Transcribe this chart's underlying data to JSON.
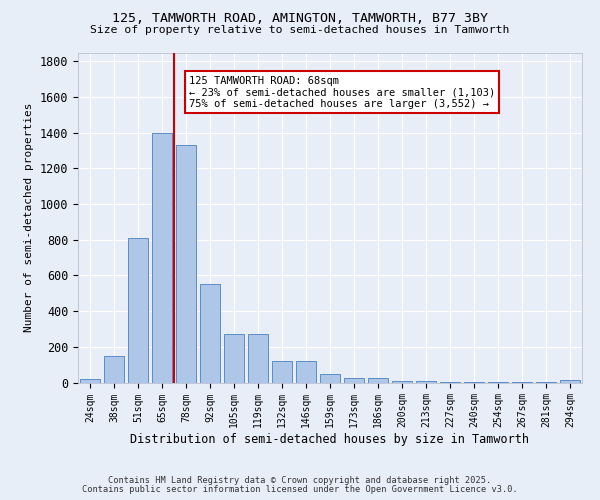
{
  "title_line1": "125, TAMWORTH ROAD, AMINGTON, TAMWORTH, B77 3BY",
  "title_line2": "Size of property relative to semi-detached houses in Tamworth",
  "xlabel": "Distribution of semi-detached houses by size in Tamworth",
  "ylabel": "Number of semi-detached properties",
  "bar_labels": [
    "24sqm",
    "38sqm",
    "51sqm",
    "65sqm",
    "78sqm",
    "92sqm",
    "105sqm",
    "119sqm",
    "132sqm",
    "146sqm",
    "159sqm",
    "173sqm",
    "186sqm",
    "200sqm",
    "213sqm",
    "227sqm",
    "240sqm",
    "254sqm",
    "267sqm",
    "281sqm",
    "294sqm"
  ],
  "bar_values": [
    20,
    150,
    810,
    1400,
    1330,
    550,
    270,
    270,
    120,
    120,
    50,
    25,
    25,
    8,
    8,
    5,
    5,
    5,
    5,
    5,
    12
  ],
  "bar_color": "#aec6e8",
  "bar_edge_color": "#5b8dc8",
  "bg_color": "#e8eef8",
  "grid_color": "#ffffff",
  "vline_color": "#cc0000",
  "annotation_text": "125 TAMWORTH ROAD: 68sqm\n← 23% of semi-detached houses are smaller (1,103)\n75% of semi-detached houses are larger (3,552) →",
  "annotation_box_color": "#ffffff",
  "annotation_box_edge_color": "#cc0000",
  "ylim": [
    0,
    1850
  ],
  "yticks": [
    0,
    200,
    400,
    600,
    800,
    1000,
    1200,
    1400,
    1600,
    1800
  ],
  "footnote1": "Contains HM Land Registry data © Crown copyright and database right 2025.",
  "footnote2": "Contains public sector information licensed under the Open Government Licence v3.0."
}
